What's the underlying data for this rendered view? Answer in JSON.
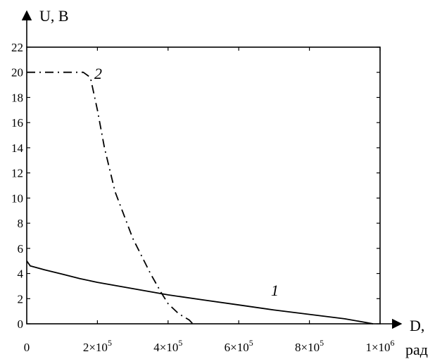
{
  "chart_data": {
    "type": "line",
    "ylabel": "U, B",
    "xlabel": [
      "D,",
      "рад"
    ],
    "xlim": [
      0,
      1000000
    ],
    "ylim": [
      0,
      22
    ],
    "x_ticks": [
      {
        "value": 0,
        "label": "0"
      },
      {
        "value": 200000,
        "label": "2×10",
        "exp": "5"
      },
      {
        "value": 400000,
        "label": "4×10",
        "exp": "5"
      },
      {
        "value": 600000,
        "label": "6×10",
        "exp": "5"
      },
      {
        "value": 800000,
        "label": "8×10",
        "exp": "5"
      },
      {
        "value": 1000000,
        "label": "1×10",
        "exp": "6"
      }
    ],
    "y_ticks": [
      0,
      2,
      4,
      6,
      8,
      10,
      12,
      14,
      16,
      18,
      20,
      22
    ],
    "series": [
      {
        "name": "1",
        "style": "solid",
        "x": [
          0,
          10000,
          50000,
          100000,
          150000,
          200000,
          300000,
          400000,
          500000,
          600000,
          700000,
          800000,
          900000,
          950000,
          980000
        ],
        "y": [
          5.0,
          4.6,
          4.3,
          3.95,
          3.6,
          3.3,
          2.8,
          2.3,
          1.9,
          1.5,
          1.1,
          0.75,
          0.4,
          0.15,
          0.0
        ]
      },
      {
        "name": "2",
        "style": "dash-dot",
        "x": [
          0,
          100000,
          160000,
          180000,
          200000,
          220000,
          250000,
          300000,
          350000,
          380000,
          400000,
          430000,
          460000,
          470000
        ],
        "y": [
          20.0,
          20.0,
          20.0,
          19.6,
          17.0,
          14.0,
          10.5,
          6.8,
          4.0,
          2.5,
          1.6,
          0.8,
          0.3,
          0.0
        ]
      }
    ]
  }
}
